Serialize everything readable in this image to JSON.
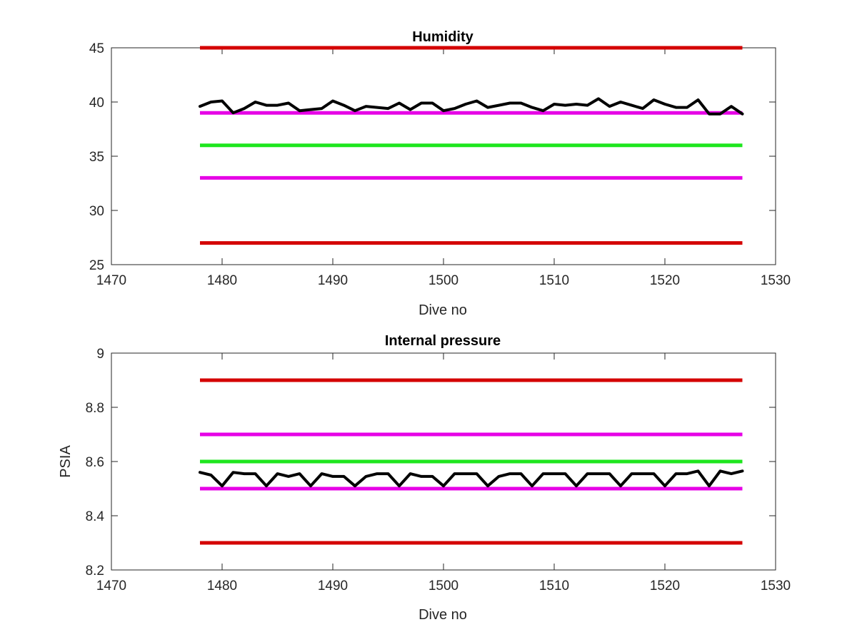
{
  "chart_data": [
    {
      "type": "line",
      "title": "Humidity",
      "xlabel": "Dive no",
      "ylabel": "",
      "xlim": [
        1470,
        1530
      ],
      "ylim": [
        25,
        45
      ],
      "xticks": [
        "1470",
        "1480",
        "1490",
        "1500",
        "1510",
        "1520",
        "1530"
      ],
      "yticks": [
        "25",
        "30",
        "35",
        "40",
        "45"
      ],
      "grid": false,
      "reference_lines": [
        {
          "y": 45,
          "x_range": [
            1478,
            1527
          ],
          "color": "#d40000"
        },
        {
          "y": 39,
          "x_range": [
            1478,
            1527
          ],
          "color": "#e600e6"
        },
        {
          "y": 36,
          "x_range": [
            1478,
            1527
          ],
          "color": "#1ee61e"
        },
        {
          "y": 33,
          "x_range": [
            1478,
            1527
          ],
          "color": "#e600e6"
        },
        {
          "y": 27,
          "x_range": [
            1478,
            1527
          ],
          "color": "#d40000"
        }
      ],
      "series": [
        {
          "color": "#000000",
          "x": [
            1478,
            1479,
            1480,
            1481,
            1482,
            1483,
            1484,
            1485,
            1486,
            1487,
            1488,
            1489,
            1490,
            1491,
            1492,
            1493,
            1494,
            1495,
            1496,
            1497,
            1498,
            1499,
            1500,
            1501,
            1502,
            1503,
            1504,
            1505,
            1506,
            1507,
            1508,
            1509,
            1510,
            1511,
            1512,
            1513,
            1514,
            1515,
            1516,
            1517,
            1518,
            1519,
            1520,
            1521,
            1522,
            1523,
            1524,
            1525,
            1526,
            1527
          ],
          "values": [
            39.6,
            40.0,
            40.1,
            39.0,
            39.4,
            40.0,
            39.7,
            39.7,
            39.9,
            39.2,
            39.3,
            39.4,
            40.1,
            39.7,
            39.2,
            39.6,
            39.5,
            39.4,
            39.9,
            39.3,
            39.9,
            39.9,
            39.2,
            39.4,
            39.8,
            40.1,
            39.5,
            39.7,
            39.9,
            39.9,
            39.5,
            39.2,
            39.8,
            39.7,
            39.8,
            39.7,
            40.3,
            39.6,
            40.0,
            39.7,
            39.4,
            40.2,
            39.8,
            39.5,
            39.5,
            40.2,
            38.9,
            38.9,
            39.6,
            38.9
          ]
        }
      ]
    },
    {
      "type": "line",
      "title": "Internal pressure",
      "xlabel": "Dive no",
      "ylabel": "PSIA",
      "xlim": [
        1470,
        1530
      ],
      "ylim": [
        8.2,
        9.0
      ],
      "xticks": [
        "1470",
        "1480",
        "1490",
        "1500",
        "1510",
        "1520",
        "1530"
      ],
      "yticks": [
        "8.2",
        "8.4",
        "8.6",
        "8.8",
        "9"
      ],
      "grid": false,
      "reference_lines": [
        {
          "y": 8.9,
          "x_range": [
            1478,
            1527
          ],
          "color": "#d40000"
        },
        {
          "y": 8.7,
          "x_range": [
            1478,
            1527
          ],
          "color": "#e600e6"
        },
        {
          "y": 8.6,
          "x_range": [
            1478,
            1527
          ],
          "color": "#1ee61e"
        },
        {
          "y": 8.5,
          "x_range": [
            1478,
            1527
          ],
          "color": "#e600e6"
        },
        {
          "y": 8.3,
          "x_range": [
            1478,
            1527
          ],
          "color": "#d40000"
        }
      ],
      "series": [
        {
          "color": "#000000",
          "x": [
            1478,
            1479,
            1480,
            1481,
            1482,
            1483,
            1484,
            1485,
            1486,
            1487,
            1488,
            1489,
            1490,
            1491,
            1492,
            1493,
            1494,
            1495,
            1496,
            1497,
            1498,
            1499,
            1500,
            1501,
            1502,
            1503,
            1504,
            1505,
            1506,
            1507,
            1508,
            1509,
            1510,
            1511,
            1512,
            1513,
            1514,
            1515,
            1516,
            1517,
            1518,
            1519,
            1520,
            1521,
            1522,
            1523,
            1524,
            1525,
            1526,
            1527
          ],
          "values": [
            8.56,
            8.55,
            8.51,
            8.56,
            8.555,
            8.555,
            8.51,
            8.555,
            8.545,
            8.555,
            8.51,
            8.555,
            8.545,
            8.545,
            8.51,
            8.545,
            8.555,
            8.555,
            8.51,
            8.555,
            8.545,
            8.545,
            8.51,
            8.555,
            8.555,
            8.555,
            8.51,
            8.545,
            8.555,
            8.555,
            8.51,
            8.555,
            8.555,
            8.555,
            8.51,
            8.555,
            8.555,
            8.555,
            8.51,
            8.555,
            8.555,
            8.555,
            8.51,
            8.555,
            8.555,
            8.565,
            8.51,
            8.565,
            8.555,
            8.565
          ]
        }
      ]
    }
  ]
}
